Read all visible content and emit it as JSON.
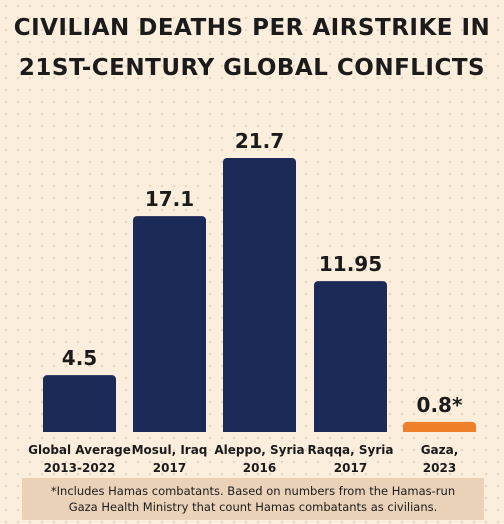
{
  "chart_data": {
    "type": "bar",
    "title_lines": [
      "CIVILIAN DEATHS PER AIRSTRIKE IN",
      "21ST-CENTURY GLOBAL CONFLICTS"
    ],
    "categories": [
      [
        "Global Average",
        "2013-2022"
      ],
      [
        "Mosul, Iraq",
        "2017"
      ],
      [
        "Aleppo, Syria",
        "2016"
      ],
      [
        "Raqqa, Syria",
        "2017"
      ],
      [
        "Gaza,",
        "2023"
      ]
    ],
    "values": [
      4.5,
      17.1,
      21.7,
      11.95,
      0.8
    ],
    "value_labels": [
      "4.5",
      "17.1",
      "21.7",
      "11.95",
      "0.8*"
    ],
    "colors": [
      "#1c2a58",
      "#1c2a58",
      "#1c2a58",
      "#1c2a58",
      "#f07f2a"
    ],
    "ylim": [
      0,
      21.7
    ],
    "grid": false,
    "xlabel": "",
    "ylabel": ""
  },
  "footnote": {
    "line1": "*Includes Hamas combatants. Based on numbers from the Hamas-run",
    "line2": "Gaza Health Ministry that count Hamas combatants as civilians."
  }
}
